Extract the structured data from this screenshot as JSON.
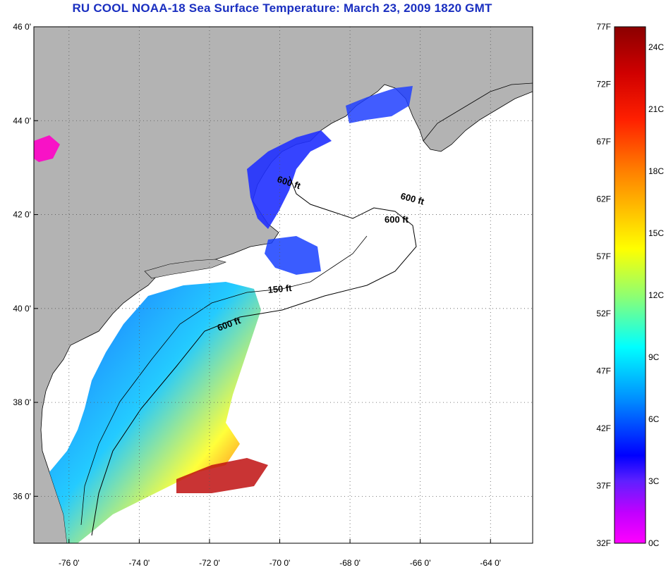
{
  "title": "RU COOL  NOAA-18  Sea Surface Temperature:  March 23, 2009 1820 GMT",
  "map": {
    "lat_ticks": [
      {
        "value": 46,
        "label": "46 0'"
      },
      {
        "value": 44,
        "label": "44 0'"
      },
      {
        "value": 42,
        "label": "42 0'"
      },
      {
        "value": 40,
        "label": "40 0'"
      },
      {
        "value": 38,
        "label": "38 0'"
      },
      {
        "value": 36,
        "label": "36 0'"
      }
    ],
    "lon_ticks": [
      {
        "value": -76,
        "label": "-76 0'"
      },
      {
        "value": -74,
        "label": "-74 0'"
      },
      {
        "value": -72,
        "label": "-72 0'"
      },
      {
        "value": -70,
        "label": "-70 0'"
      },
      {
        "value": -68,
        "label": "-68 0'"
      },
      {
        "value": -66,
        "label": "-66 0'"
      },
      {
        "value": -64,
        "label": "-64 0'"
      }
    ],
    "contour_labels": [
      "600 ft",
      "600 ft",
      "600 ft",
      "150 ft",
      "600 ft"
    ],
    "colors": {
      "land": "#b3b3b3",
      "ocean_no_data": "#ffffff",
      "grid": "#555555"
    }
  },
  "colorbar": {
    "left_labels": [
      "77F",
      "72F",
      "67F",
      "62F",
      "57F",
      "52F",
      "47F",
      "42F",
      "37F",
      "32F"
    ],
    "right_labels": [
      "24C",
      "21C",
      "18C",
      "15C",
      "12C",
      "9C",
      "6C",
      "3C",
      "0C"
    ],
    "gradient_colors": [
      "#8b0000",
      "#ff0000",
      "#ff8000",
      "#ffff00",
      "#80ff80",
      "#00ffff",
      "#0080ff",
      "#0000ff",
      "#8000ff",
      "#ff00ff"
    ]
  }
}
